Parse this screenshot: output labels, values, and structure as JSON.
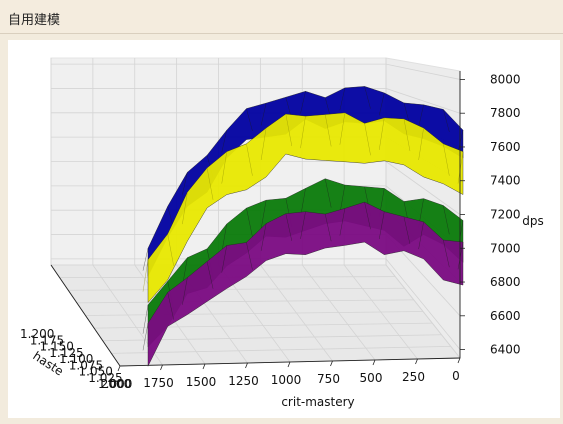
{
  "window": {
    "title": "自用建模"
  },
  "chart_data": {
    "type": "surface",
    "title": "",
    "xlabel": "crit-mastery",
    "ylabel": "haste",
    "zlabel": "dps",
    "x_ticks": [
      "2000",
      "1750",
      "1500",
      "1250",
      "1000",
      "750",
      "500",
      "250",
      "0"
    ],
    "y_ticks": [
      "1.200",
      "1.175",
      "1.150",
      "1.125",
      "1.100",
      "1.075",
      "1.050",
      "1.025",
      "1.000"
    ],
    "z_ticks": [
      "6400",
      "6600",
      "6800",
      "7000",
      "7200",
      "7400",
      "7600",
      "7800",
      "8000"
    ],
    "xlim": [
      0,
      2000
    ],
    "ylim": [
      1.0,
      1.2
    ],
    "zlim": [
      6350,
      8050
    ],
    "grid": true,
    "series": [
      {
        "name": "",
        "color": "#0000a0",
        "crit_mastery": [
          2000,
          1750,
          1500,
          1250,
          1000,
          750,
          500,
          250,
          0
        ],
        "dps": [
          7000,
          7450,
          7700,
          7860,
          7930,
          7950,
          7920,
          7850,
          7700
        ]
      },
      {
        "name": "",
        "color": "#e8e800",
        "crit_mastery": [
          2000,
          1750,
          1500,
          1250,
          1000,
          750,
          500,
          250,
          0
        ],
        "dps": [
          6980,
          7380,
          7620,
          7760,
          7830,
          7850,
          7820,
          7760,
          7620
        ]
      },
      {
        "name": "",
        "color": "#0a7a0a",
        "crit_mastery": [
          2000,
          1750,
          1500,
          1250,
          1000,
          750,
          500,
          250,
          0
        ],
        "dps": [
          6700,
          6980,
          7180,
          7320,
          7390,
          7410,
          7390,
          7330,
          7200
        ]
      },
      {
        "name": "",
        "color": "#7a0a82",
        "crit_mastery": [
          2000,
          1750,
          1500,
          1250,
          1000,
          750,
          500,
          250,
          0
        ],
        "dps": [
          6580,
          6850,
          7040,
          7170,
          7240,
          7260,
          7240,
          7180,
          7060
        ]
      }
    ]
  }
}
